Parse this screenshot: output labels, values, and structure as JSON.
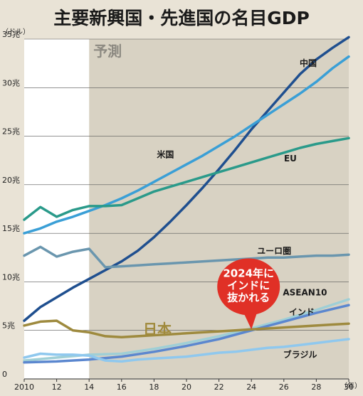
{
  "title": "主要新興国・先進国の名目GDP",
  "chart_data": {
    "type": "line",
    "y_unit_label": "（ドル）",
    "x_unit_label": "（年）",
    "forecast_label": "予測",
    "forecast_start": 2014,
    "xlim": [
      2010,
      2030
    ],
    "ylim": [
      0,
      35
    ],
    "x_ticks": [
      {
        "value": 2010,
        "label": "2010"
      },
      {
        "value": 2012,
        "label": "12"
      },
      {
        "value": 2014,
        "label": "14"
      },
      {
        "value": 2016,
        "label": "16"
      },
      {
        "value": 2018,
        "label": "18"
      },
      {
        "value": 2020,
        "label": "20"
      },
      {
        "value": 2022,
        "label": "22"
      },
      {
        "value": 2024,
        "label": "24"
      },
      {
        "value": 2026,
        "label": "26"
      },
      {
        "value": 2028,
        "label": "28"
      },
      {
        "value": 2030,
        "label": "30"
      }
    ],
    "y_ticks": [
      {
        "value": 0,
        "label": "0"
      },
      {
        "value": 5,
        "label": "5兆"
      },
      {
        "value": 10,
        "label": "10兆"
      },
      {
        "value": 15,
        "label": "15兆"
      },
      {
        "value": 20,
        "label": "20兆"
      },
      {
        "value": 25,
        "label": "25兆"
      },
      {
        "value": 30,
        "label": "30兆"
      },
      {
        "value": 35,
        "label": "35兆"
      }
    ],
    "series": [
      {
        "name": "中国",
        "color": "#1f4f8f",
        "points": [
          [
            2010,
            6.0
          ],
          [
            2011,
            7.4
          ],
          [
            2012,
            8.4
          ],
          [
            2013,
            9.4
          ],
          [
            2014,
            10.3
          ],
          [
            2015,
            11.2
          ],
          [
            2016,
            12.1
          ],
          [
            2017,
            13.2
          ],
          [
            2018,
            14.6
          ],
          [
            2019,
            16.2
          ],
          [
            2020,
            17.9
          ],
          [
            2021,
            19.7
          ],
          [
            2022,
            21.6
          ],
          [
            2023,
            23.6
          ],
          [
            2024,
            25.7
          ],
          [
            2025,
            27.6
          ],
          [
            2026,
            29.5
          ],
          [
            2027,
            31.4
          ],
          [
            2028,
            32.9
          ],
          [
            2029,
            34.1
          ],
          [
            2030,
            35.2
          ]
        ]
      },
      {
        "name": "米国",
        "color": "#3a9fd6",
        "points": [
          [
            2010,
            15.0
          ],
          [
            2011,
            15.5
          ],
          [
            2012,
            16.2
          ],
          [
            2013,
            16.7
          ],
          [
            2014,
            17.3
          ],
          [
            2015,
            17.9
          ],
          [
            2016,
            18.6
          ],
          [
            2017,
            19.4
          ],
          [
            2018,
            20.3
          ],
          [
            2019,
            21.2
          ],
          [
            2020,
            22.1
          ],
          [
            2021,
            23.0
          ],
          [
            2022,
            24.0
          ],
          [
            2023,
            25.0
          ],
          [
            2024,
            26.1
          ],
          [
            2025,
            27.2
          ],
          [
            2026,
            28.3
          ],
          [
            2027,
            29.4
          ],
          [
            2028,
            30.6
          ],
          [
            2029,
            32.0
          ],
          [
            2030,
            33.2
          ]
        ]
      },
      {
        "name": "EU",
        "color": "#2a9a8a",
        "points": [
          [
            2010,
            16.4
          ],
          [
            2011,
            17.7
          ],
          [
            2012,
            16.7
          ],
          [
            2013,
            17.4
          ],
          [
            2014,
            17.8
          ],
          [
            2015,
            17.8
          ],
          [
            2016,
            17.9
          ],
          [
            2017,
            18.6
          ],
          [
            2018,
            19.3
          ],
          [
            2019,
            19.8
          ],
          [
            2020,
            20.3
          ],
          [
            2021,
            20.8
          ],
          [
            2022,
            21.3
          ],
          [
            2023,
            21.8
          ],
          [
            2024,
            22.3
          ],
          [
            2025,
            22.8
          ],
          [
            2026,
            23.3
          ],
          [
            2027,
            23.8
          ],
          [
            2028,
            24.2
          ],
          [
            2029,
            24.5
          ],
          [
            2030,
            24.8
          ]
        ]
      },
      {
        "name": "ユーロ圏",
        "color": "#6a96ae",
        "points": [
          [
            2010,
            12.7
          ],
          [
            2011,
            13.6
          ],
          [
            2012,
            12.6
          ],
          [
            2013,
            13.1
          ],
          [
            2014,
            13.4
          ],
          [
            2015,
            11.5
          ],
          [
            2016,
            11.6
          ],
          [
            2017,
            11.7
          ],
          [
            2018,
            11.8
          ],
          [
            2019,
            11.9
          ],
          [
            2020,
            12.0
          ],
          [
            2021,
            12.1
          ],
          [
            2022,
            12.2
          ],
          [
            2023,
            12.3
          ],
          [
            2024,
            12.4
          ],
          [
            2025,
            12.5
          ],
          [
            2026,
            12.5
          ],
          [
            2027,
            12.6
          ],
          [
            2028,
            12.7
          ],
          [
            2029,
            12.7
          ],
          [
            2030,
            12.8
          ]
        ]
      },
      {
        "name": "ASEAN10",
        "color": "#9fcfd6",
        "points": [
          [
            2010,
            1.9
          ],
          [
            2012,
            2.2
          ],
          [
            2014,
            2.5
          ],
          [
            2016,
            2.6
          ],
          [
            2018,
            3.1
          ],
          [
            2020,
            3.7
          ],
          [
            2022,
            4.4
          ],
          [
            2024,
            5.2
          ],
          [
            2026,
            6.1
          ],
          [
            2028,
            7.1
          ],
          [
            2030,
            8.2
          ]
        ]
      },
      {
        "name": "インド",
        "color": "#5b87cf",
        "points": [
          [
            2010,
            1.7
          ],
          [
            2012,
            1.8
          ],
          [
            2014,
            2.0
          ],
          [
            2016,
            2.3
          ],
          [
            2018,
            2.8
          ],
          [
            2020,
            3.4
          ],
          [
            2022,
            4.1
          ],
          [
            2024,
            5.0
          ],
          [
            2026,
            5.9
          ],
          [
            2028,
            6.8
          ],
          [
            2030,
            7.6
          ]
        ]
      },
      {
        "name": "日本",
        "color": "#9e8a3e",
        "points": [
          [
            2010,
            5.5
          ],
          [
            2011,
            5.9
          ],
          [
            2012,
            6.0
          ],
          [
            2013,
            5.0
          ],
          [
            2014,
            4.8
          ],
          [
            2015,
            4.4
          ],
          [
            2016,
            4.3
          ],
          [
            2017,
            4.4
          ],
          [
            2018,
            4.5
          ],
          [
            2019,
            4.6
          ],
          [
            2020,
            4.7
          ],
          [
            2021,
            4.8
          ],
          [
            2022,
            4.9
          ],
          [
            2023,
            5.0
          ],
          [
            2024,
            5.1
          ],
          [
            2025,
            5.2
          ],
          [
            2026,
            5.3
          ],
          [
            2027,
            5.4
          ],
          [
            2028,
            5.5
          ],
          [
            2029,
            5.6
          ],
          [
            2030,
            5.7
          ]
        ]
      },
      {
        "name": "ブラジル",
        "color": "#8fc8ee",
        "points": [
          [
            2010,
            2.2
          ],
          [
            2011,
            2.6
          ],
          [
            2012,
            2.5
          ],
          [
            2013,
            2.5
          ],
          [
            2014,
            2.4
          ],
          [
            2015,
            1.9
          ],
          [
            2016,
            1.8
          ],
          [
            2017,
            2.0
          ],
          [
            2018,
            2.1
          ],
          [
            2019,
            2.2
          ],
          [
            2020,
            2.3
          ],
          [
            2021,
            2.5
          ],
          [
            2022,
            2.7
          ],
          [
            2023,
            2.8
          ],
          [
            2024,
            3.0
          ],
          [
            2025,
            3.2
          ],
          [
            2026,
            3.3
          ],
          [
            2027,
            3.5
          ],
          [
            2028,
            3.7
          ],
          [
            2029,
            3.9
          ],
          [
            2030,
            4.1
          ]
        ]
      }
    ],
    "series_labels": [
      {
        "series": "中国",
        "x": 2027.5,
        "y": 32.2
      },
      {
        "series": "米国",
        "x": 2018.7,
        "y": 22.8
      },
      {
        "series": "EU",
        "x": 2026.4,
        "y": 22.4
      },
      {
        "series": "ユーロ圏",
        "x": 2025.4,
        "y": 12.9
      },
      {
        "series": "ASEAN10",
        "x": 2027.3,
        "y": 8.6
      },
      {
        "series": "インド",
        "x": 2027.1,
        "y": 6.6
      },
      {
        "series": "ブラジル",
        "x": 2027.0,
        "y": 2.2
      }
    ],
    "japan_label": {
      "text": "日本",
      "x": 2018.2,
      "y": 4.6
    },
    "callout": {
      "lines": [
        "2024年に",
        "インドに",
        "抜かれる"
      ],
      "x": 2024,
      "y": 5.1
    }
  }
}
